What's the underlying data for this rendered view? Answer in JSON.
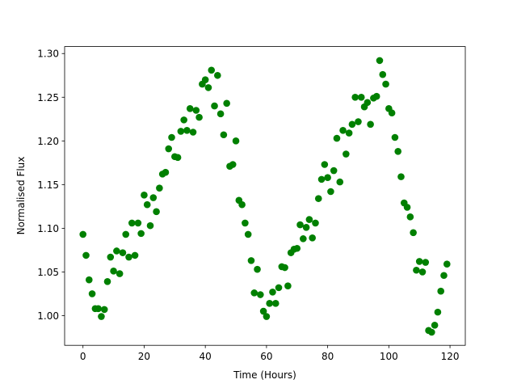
{
  "chart_data": {
    "type": "scatter",
    "xlabel": "Time (Hours)",
    "ylabel": "Normalised Flux",
    "color": "#008000",
    "xlim": [
      -6,
      125
    ],
    "ylim": [
      0.966,
      1.308
    ],
    "xticks": [
      0,
      20,
      40,
      60,
      80,
      100,
      120
    ],
    "yticks": [
      {
        "value": 1.0,
        "label": "1.00"
      },
      {
        "value": 1.05,
        "label": "1.05"
      },
      {
        "value": 1.1,
        "label": "1.10"
      },
      {
        "value": 1.15,
        "label": "1.15"
      },
      {
        "value": 1.2,
        "label": "1.20"
      },
      {
        "value": 1.25,
        "label": "1.25"
      },
      {
        "value": 1.3,
        "label": "1.30"
      }
    ],
    "x": [
      0,
      1,
      2,
      3,
      4,
      5,
      6,
      7,
      8,
      9,
      10,
      11,
      12,
      13,
      14,
      15,
      16,
      17,
      18,
      19,
      20,
      21,
      22,
      23,
      24,
      25,
      26,
      27,
      28,
      29,
      30,
      31,
      32,
      33,
      34,
      35,
      36,
      37,
      38,
      39,
      40,
      41,
      42,
      43,
      44,
      45,
      46,
      47,
      48,
      49,
      50,
      51,
      52,
      53,
      54,
      55,
      56,
      57,
      58,
      59,
      60,
      61,
      62,
      63,
      64,
      65,
      66,
      67,
      68,
      69,
      70,
      71,
      72,
      73,
      74,
      75,
      76,
      77,
      78,
      79,
      80,
      81,
      82,
      83,
      84,
      85,
      86,
      87,
      88,
      89,
      90,
      91,
      92,
      93,
      94,
      95,
      96,
      97,
      98,
      99,
      100,
      101,
      102,
      103,
      104,
      105,
      106,
      107,
      108,
      109,
      110,
      111,
      112,
      113,
      114,
      115,
      116,
      117,
      118,
      119
    ],
    "values": [
      1.093,
      1.069,
      1.041,
      1.025,
      1.008,
      1.008,
      0.999,
      1.007,
      1.039,
      1.067,
      1.051,
      1.074,
      1.048,
      1.072,
      1.093,
      1.067,
      1.106,
      1.069,
      1.106,
      1.094,
      1.138,
      1.127,
      1.103,
      1.135,
      1.119,
      1.146,
      1.162,
      1.164,
      1.191,
      1.204,
      1.182,
      1.181,
      1.211,
      1.224,
      1.212,
      1.237,
      1.21,
      1.235,
      1.227,
      1.265,
      1.27,
      1.261,
      1.281,
      1.24,
      1.275,
      1.231,
      1.207,
      1.243,
      1.171,
      1.173,
      1.2,
      1.132,
      1.127,
      1.106,
      1.093,
      1.063,
      1.026,
      1.053,
      1.024,
      1.005,
      0.999,
      1.014,
      1.027,
      1.014,
      1.032,
      1.056,
      1.055,
      1.034,
      1.072,
      1.076,
      1.077,
      1.104,
      1.088,
      1.101,
      1.11,
      1.089,
      1.106,
      1.134,
      1.156,
      1.173,
      1.158,
      1.142,
      1.166,
      1.203,
      1.153,
      1.212,
      1.185,
      1.209,
      1.219,
      1.25,
      1.222,
      1.25,
      1.239,
      1.244,
      1.219,
      1.249,
      1.251,
      1.292,
      1.276,
      1.265,
      1.237,
      1.232,
      1.204,
      1.188,
      1.159,
      1.129,
      1.124,
      1.113,
      1.095,
      1.052,
      1.062,
      1.05,
      1.061,
      0.983,
      0.981,
      0.989,
      1.004,
      1.028,
      1.046,
      1.059
    ]
  }
}
